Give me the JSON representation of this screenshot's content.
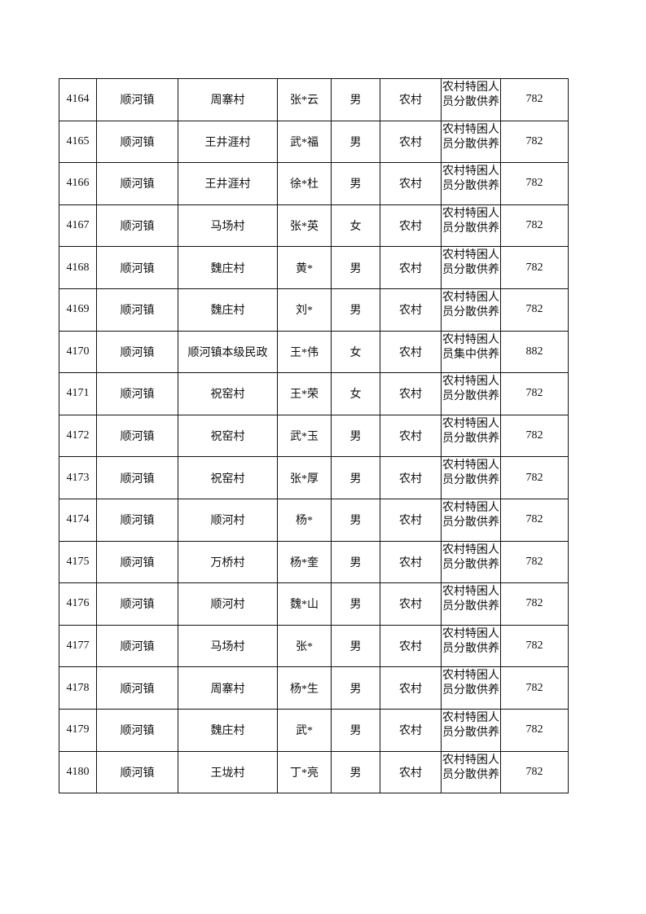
{
  "table": {
    "rows": [
      {
        "no": "4164",
        "town": "顺河镇",
        "village": "周寨村",
        "name": "张*云",
        "gender": "男",
        "type": "农村",
        "category": "农村特困人员分散供养",
        "amount": "782"
      },
      {
        "no": "4165",
        "town": "顺河镇",
        "village": "王井涯村",
        "name": "武*福",
        "gender": "男",
        "type": "农村",
        "category": "农村特困人员分散供养",
        "amount": "782"
      },
      {
        "no": "4166",
        "town": "顺河镇",
        "village": "王井涯村",
        "name": "徐*杜",
        "gender": "男",
        "type": "农村",
        "category": "农村特困人员分散供养",
        "amount": "782"
      },
      {
        "no": "4167",
        "town": "顺河镇",
        "village": "马场村",
        "name": "张*英",
        "gender": "女",
        "type": "农村",
        "category": "农村特困人员分散供养",
        "amount": "782"
      },
      {
        "no": "4168",
        "town": "顺河镇",
        "village": "魏庄村",
        "name": "黄*",
        "gender": "男",
        "type": "农村",
        "category": "农村特困人员分散供养",
        "amount": "782"
      },
      {
        "no": "4169",
        "town": "顺河镇",
        "village": "魏庄村",
        "name": "刘*",
        "gender": "男",
        "type": "农村",
        "category": "农村特困人员分散供养",
        "amount": "782"
      },
      {
        "no": "4170",
        "town": "顺河镇",
        "village": "顺河镇本级民政",
        "name": "王*伟",
        "gender": "女",
        "type": "农村",
        "category": "农村特困人员集中供养",
        "amount": "882"
      },
      {
        "no": "4171",
        "town": "顺河镇",
        "village": "祝窑村",
        "name": "王*荣",
        "gender": "女",
        "type": "农村",
        "category": "农村特困人员分散供养",
        "amount": "782"
      },
      {
        "no": "4172",
        "town": "顺河镇",
        "village": "祝窑村",
        "name": "武*玉",
        "gender": "男",
        "type": "农村",
        "category": "农村特困人员分散供养",
        "amount": "782"
      },
      {
        "no": "4173",
        "town": "顺河镇",
        "village": "祝窑村",
        "name": "张*厚",
        "gender": "男",
        "type": "农村",
        "category": "农村特困人员分散供养",
        "amount": "782"
      },
      {
        "no": "4174",
        "town": "顺河镇",
        "village": "顺河村",
        "name": "杨*",
        "gender": "男",
        "type": "农村",
        "category": "农村特困人员分散供养",
        "amount": "782"
      },
      {
        "no": "4175",
        "town": "顺河镇",
        "village": "万桥村",
        "name": "杨*奎",
        "gender": "男",
        "type": "农村",
        "category": "农村特困人员分散供养",
        "amount": "782"
      },
      {
        "no": "4176",
        "town": "顺河镇",
        "village": "顺河村",
        "name": "魏*山",
        "gender": "男",
        "type": "农村",
        "category": "农村特困人员分散供养",
        "amount": "782"
      },
      {
        "no": "4177",
        "town": "顺河镇",
        "village": "马场村",
        "name": "张*",
        "gender": "男",
        "type": "农村",
        "category": "农村特困人员分散供养",
        "amount": "782"
      },
      {
        "no": "4178",
        "town": "顺河镇",
        "village": "周寨村",
        "name": "杨*生",
        "gender": "男",
        "type": "农村",
        "category": "农村特困人员分散供养",
        "amount": "782"
      },
      {
        "no": "4179",
        "town": "顺河镇",
        "village": "魏庄村",
        "name": "武*",
        "gender": "男",
        "type": "农村",
        "category": "农村特困人员分散供养",
        "amount": "782"
      },
      {
        "no": "4180",
        "town": "顺河镇",
        "village": "王垅村",
        "name": "丁*亮",
        "gender": "男",
        "type": "农村",
        "category": "农村特困人员分散供养",
        "amount": "782"
      }
    ]
  }
}
